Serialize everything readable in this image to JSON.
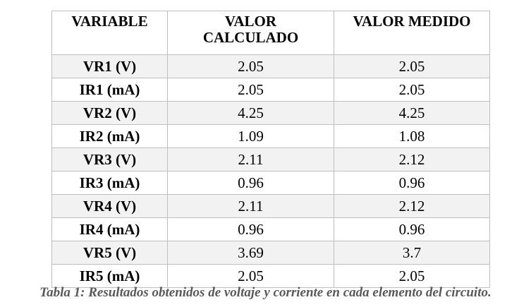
{
  "table": {
    "headers": {
      "variable": "VARIABLE",
      "calculated_line1": "VALOR",
      "calculated_line2": "CALCULADO",
      "measured": "VALOR MEDIDO"
    },
    "rows": [
      {
        "variable": "VR1 (V)",
        "calculated": "2.05",
        "measured": "2.05"
      },
      {
        "variable": "IR1 (mA)",
        "calculated": "2.05",
        "measured": "2.05"
      },
      {
        "variable": "VR2 (V)",
        "calculated": "4.25",
        "measured": "4.25"
      },
      {
        "variable": "IR2 (mA)",
        "calculated": "1.09",
        "measured": "1.08"
      },
      {
        "variable": "VR3 (V)",
        "calculated": "2.11",
        "measured": "2.12"
      },
      {
        "variable": "IR3 (mA)",
        "calculated": "0.96",
        "measured": "0.96"
      },
      {
        "variable": "VR4 (V)",
        "calculated": "2.11",
        "measured": "2.12"
      },
      {
        "variable": "IR4 (mA)",
        "calculated": "0.96",
        "measured": "0.96"
      },
      {
        "variable": "VR5 (V)",
        "calculated": "3.69",
        "measured": "3.7"
      },
      {
        "variable": "IR5 (mA)",
        "calculated": "2.05",
        "measured": "2.05"
      }
    ]
  },
  "caption": "Tabla 1: Resultados obtenidos de voltaje y corriente en cada elemento del circuito.",
  "colors": {
    "border": "#bfbfbf",
    "row_shade": "#f2f2f2",
    "caption_text": "#595959"
  }
}
